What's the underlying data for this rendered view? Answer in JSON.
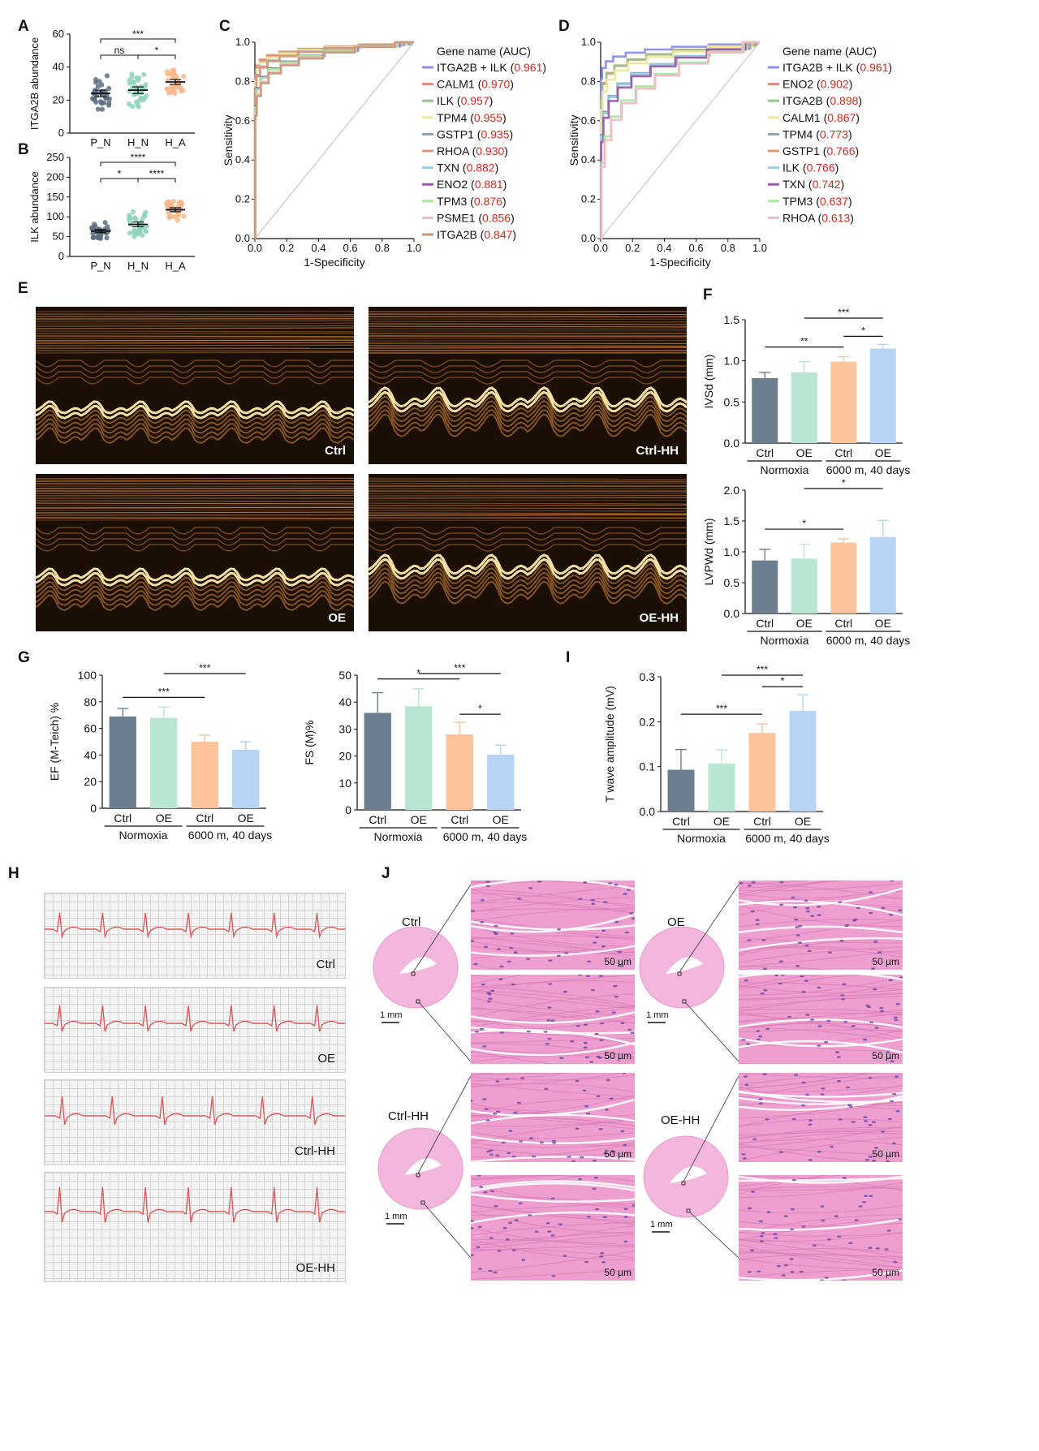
{
  "panel_labels": [
    "A",
    "B",
    "C",
    "D",
    "E",
    "F",
    "G",
    "H",
    "I",
    "J"
  ],
  "colors": {
    "pn": "#5c7084",
    "hn": "#8fd3bb",
    "ha": "#f7b78c",
    "ctrl": "#6b7f91",
    "oe": "#b9e5d3",
    "ctrlhh": "#fdc39a",
    "oehh": "#b7d4f5",
    "auc_red": "#d6281f"
  },
  "chart_data": [
    {
      "id": "A",
      "type": "scatter",
      "categories": [
        "P_N",
        "H_N",
        "H_A"
      ],
      "values": [
        24,
        26,
        31
      ],
      "sem": [
        2,
        2,
        1.5
      ],
      "ylabel": "ITGA2B abundance",
      "ylim": [
        0,
        60
      ],
      "yticks": [
        0,
        20,
        40,
        60
      ],
      "sig": [
        {
          "from": 0,
          "to": 2,
          "label": "***"
        },
        {
          "from": 0,
          "to": 1,
          "label": "ns"
        },
        {
          "from": 1,
          "to": 2,
          "label": "*"
        }
      ]
    },
    {
      "id": "B",
      "type": "scatter",
      "categories": [
        "P_N",
        "H_N",
        "H_A"
      ],
      "values": [
        64,
        81,
        118
      ],
      "sem": [
        4,
        6,
        5
      ],
      "ylabel": "ILK abundance",
      "ylim": [
        0,
        250
      ],
      "yticks": [
        0,
        50,
        100,
        150,
        200,
        250
      ],
      "sig": [
        {
          "from": 0,
          "to": 2,
          "label": "****"
        },
        {
          "from": 0,
          "to": 1,
          "label": "*"
        },
        {
          "from": 1,
          "to": 2,
          "label": "****"
        }
      ]
    },
    {
      "id": "C",
      "type": "line",
      "xlabel": "1-Specificity",
      "ylabel": "Sensitivity",
      "ticks": [
        "0.0",
        "0.2",
        "0.4",
        "0.6",
        "0.8",
        "1.0"
      ],
      "legend_title": "Gene name (AUC)",
      "series": [
        {
          "name": "ITGA2B + ILK",
          "auc": "0.961",
          "color": "#8c8ef0"
        },
        {
          "name": "CALM1",
          "auc": "0.970",
          "color": "#e88a78"
        },
        {
          "name": "ILK",
          "auc": "0.957",
          "color": "#9cc18a"
        },
        {
          "name": "TPM4",
          "auc": "0.955",
          "color": "#f1e79a"
        },
        {
          "name": "GSTP1",
          "auc": "0.935",
          "color": "#8ea2b3"
        },
        {
          "name": "RHOA",
          "auc": "0.930",
          "color": "#d99a7a"
        },
        {
          "name": "TXN",
          "auc": "0.882",
          "color": "#8fd3ee"
        },
        {
          "name": "ENO2",
          "auc": "0.881",
          "color": "#9a5aa8"
        },
        {
          "name": "TPM3",
          "auc": "0.876",
          "color": "#a8e6a0"
        },
        {
          "name": "PSME1",
          "auc": "0.856",
          "color": "#f2b9c5"
        },
        {
          "name": "ITGA2B",
          "auc": "0.847",
          "color": "#c49a7a"
        }
      ]
    },
    {
      "id": "D",
      "type": "line",
      "xlabel": "1-Specificity",
      "ylabel": "Sensitivity",
      "ticks": [
        "0.0",
        "0.2",
        "0.4",
        "0.6",
        "0.8",
        "1.0"
      ],
      "legend_title": "Gene name (AUC)",
      "series": [
        {
          "name": "ITGA2B + ILK",
          "auc": "0.961",
          "color": "#8c8ef0"
        },
        {
          "name": "ENO2",
          "auc": "0.902",
          "color": "#e88a78"
        },
        {
          "name": "ITGA2B",
          "auc": "0.898",
          "color": "#9cc18a"
        },
        {
          "name": "CALM1",
          "auc": "0.867",
          "color": "#f1e79a"
        },
        {
          "name": "TPM4",
          "auc": "0.773",
          "color": "#8ea2b3"
        },
        {
          "name": "GSTP1",
          "auc": "0.766",
          "color": "#d99a7a"
        },
        {
          "name": "ILK",
          "auc": "0.766",
          "color": "#8fd3ee"
        },
        {
          "name": "TXN",
          "auc": "0.742",
          "color": "#9a5aa8"
        },
        {
          "name": "TPM3",
          "auc": "0.637",
          "color": "#a8e6a0"
        },
        {
          "name": "RHOA",
          "auc": "0.613",
          "color": "#f2b9c5"
        }
      ]
    },
    {
      "id": "F1",
      "type": "bar",
      "categories": [
        "Ctrl",
        "OE",
        "Ctrl",
        "OE"
      ],
      "values": [
        0.79,
        0.86,
        0.99,
        1.15
      ],
      "err": [
        0.07,
        0.13,
        0.06,
        0.05
      ],
      "ylabel": "IVSd (mm)",
      "ylim": [
        0,
        1.5
      ],
      "yticks": [
        "0.0",
        "0.5",
        "1.0",
        "1.5"
      ],
      "groups": [
        "Normoxia",
        "6000 m, 40 days"
      ],
      "sig": [
        {
          "from": 1,
          "to": 3,
          "label": "***"
        },
        {
          "from": 0,
          "to": 2,
          "label": "**"
        },
        {
          "from": 2,
          "to": 3,
          "label": "*"
        }
      ]
    },
    {
      "id": "F2",
      "type": "bar",
      "categories": [
        "Ctrl",
        "OE",
        "Ctrl",
        "OE"
      ],
      "values": [
        0.86,
        0.89,
        1.15,
        1.24
      ],
      "err": [
        0.18,
        0.23,
        0.06,
        0.27
      ],
      "ylabel": "LVPWd (mm)",
      "ylim": [
        0,
        2
      ],
      "yticks": [
        "0.0",
        "0.5",
        "1.0",
        "1.5",
        "2.0"
      ],
      "groups": [
        "Normoxia",
        "6000 m, 40 days"
      ],
      "sig": [
        {
          "from": 1,
          "to": 3,
          "label": "*"
        },
        {
          "from": 0,
          "to": 2,
          "label": "*"
        }
      ]
    },
    {
      "id": "G1",
      "type": "bar",
      "categories": [
        "Ctrl",
        "OE",
        "Ctrl",
        "OE"
      ],
      "values": [
        69,
        68,
        50,
        44
      ],
      "err": [
        6,
        8,
        5,
        6
      ],
      "ylabel": "EF (M-Teich) %",
      "ylim": [
        0,
        100
      ],
      "yticks": [
        "0",
        "20",
        "40",
        "60",
        "80",
        "100"
      ],
      "groups": [
        "Normoxia",
        "6000 m, 40 days"
      ],
      "sig": [
        {
          "from": 1,
          "to": 3,
          "label": "***"
        },
        {
          "from": 0,
          "to": 2,
          "label": "***"
        }
      ]
    },
    {
      "id": "G2",
      "type": "bar",
      "categories": [
        "Ctrl",
        "OE",
        "Ctrl",
        "OE"
      ],
      "values": [
        36,
        38.5,
        28,
        20.5
      ],
      "err": [
        7.5,
        6.5,
        4.5,
        3.5
      ],
      "ylabel": "FS (M)%",
      "ylim": [
        0,
        50
      ],
      "yticks": [
        "0",
        "10",
        "20",
        "30",
        "40",
        "50"
      ],
      "groups": [
        "Normoxia",
        "6000 m, 40 days"
      ],
      "sig": [
        {
          "from": 1,
          "to": 3,
          "label": "***"
        },
        {
          "from": 0,
          "to": 2,
          "label": "*"
        },
        {
          "from": 2,
          "to": 3,
          "label": "*"
        }
      ]
    },
    {
      "id": "I",
      "type": "bar",
      "categories": [
        "Ctrl",
        "OE",
        "Ctrl",
        "OE"
      ],
      "values": [
        0.093,
        0.107,
        0.175,
        0.224
      ],
      "err": [
        0.045,
        0.03,
        0.02,
        0.036
      ],
      "ylabel": "T wave amplitude (mV)",
      "ylim": [
        0,
        0.3
      ],
      "yticks": [
        "0.0",
        "0.1",
        "0.2",
        "0.3"
      ],
      "groups": [
        "Normoxia",
        "6000 m, 40 days"
      ],
      "sig": [
        {
          "from": 1,
          "to": 3,
          "label": "***"
        },
        {
          "from": 0,
          "to": 2,
          "label": "***"
        },
        {
          "from": 2,
          "to": 3,
          "label": "*"
        }
      ]
    }
  ],
  "echo_labels": [
    "Ctrl",
    "Ctrl-HH",
    "OE",
    "OE-HH"
  ],
  "ecg_labels": [
    "Ctrl",
    "OE",
    "Ctrl-HH",
    "OE-HH"
  ],
  "histo": {
    "groups": [
      "Ctrl",
      "OE",
      "Ctrl-HH",
      "OE-HH"
    ],
    "scale_small": "1 mm",
    "scale_large": "50 µm"
  }
}
